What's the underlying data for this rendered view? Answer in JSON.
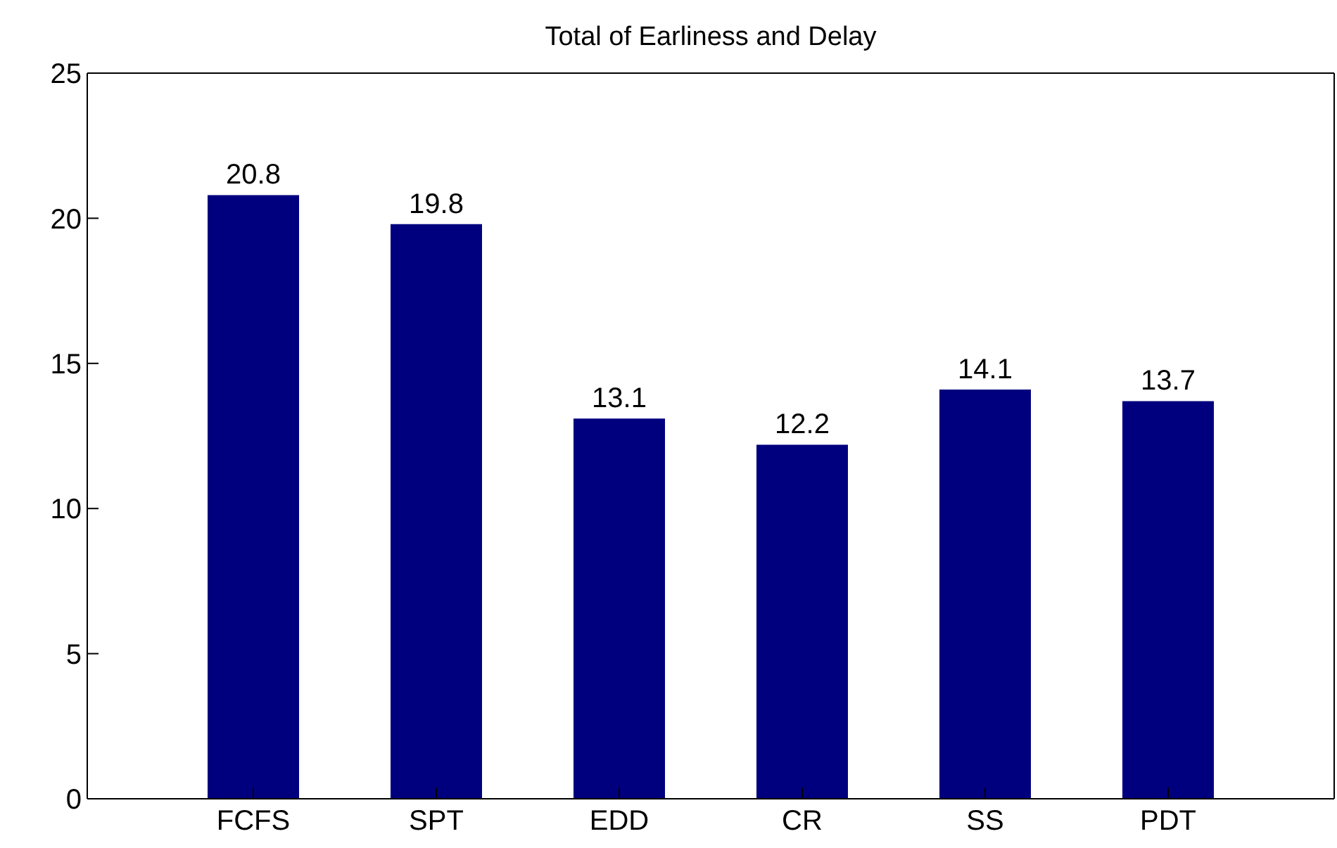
{
  "chart_data": {
    "type": "bar",
    "title": "Total of Earliness and Delay",
    "categories": [
      "FCFS",
      "SPT",
      "EDD",
      "CR",
      "SS",
      "PDT"
    ],
    "values": [
      20.8,
      19.8,
      13.1,
      12.2,
      14.1,
      13.7
    ],
    "color": "#00007f",
    "ylim": [
      0,
      25
    ],
    "yticks": [
      0,
      5,
      10,
      15,
      20,
      25
    ],
    "data_labels": true,
    "grid": false
  }
}
